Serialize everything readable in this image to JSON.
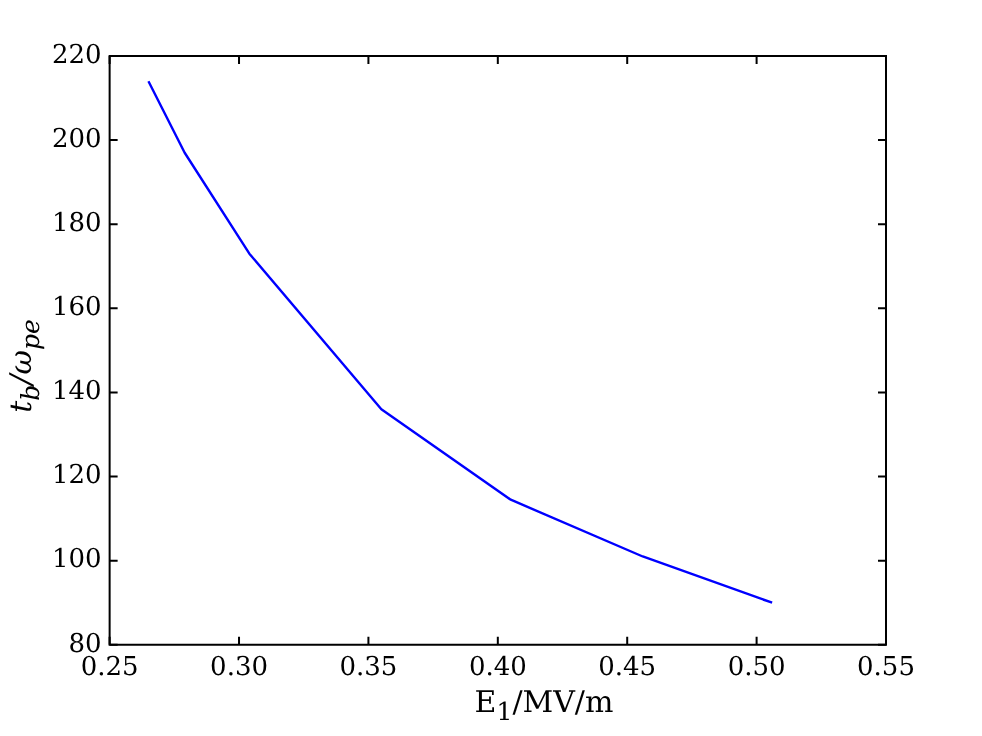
{
  "chart_data": {
    "type": "line",
    "xlabel": "E$_{1}$/MV/m",
    "ylabel": "t$_{b}$/ω$_{pe}$",
    "x": [
      0.265,
      0.279,
      0.304,
      0.355,
      0.405,
      0.456,
      0.506
    ],
    "series": [
      {
        "color": "#0000ff",
        "values": [
          214,
          197,
          173,
          136,
          114.5,
          101,
          90
        ]
      }
    ],
    "xlim": [
      0.25,
      0.55
    ],
    "xticks": [
      {
        "value": 0.25,
        "label": "0.25"
      },
      {
        "value": 0.3,
        "label": "0.30"
      },
      {
        "value": 0.35,
        "label": "0.35"
      },
      {
        "value": 0.4,
        "label": "0.40"
      },
      {
        "value": 0.45,
        "label": "0.45"
      },
      {
        "value": 0.5,
        "label": "0.50"
      },
      {
        "value": 0.55,
        "label": "0.55"
      }
    ],
    "ylim": [
      80,
      220
    ],
    "yticks": [
      80,
      100,
      120,
      140,
      160,
      180,
      200,
      220
    ],
    "grid": false,
    "legend": false,
    "marker": "none",
    "line_style": "solid"
  }
}
